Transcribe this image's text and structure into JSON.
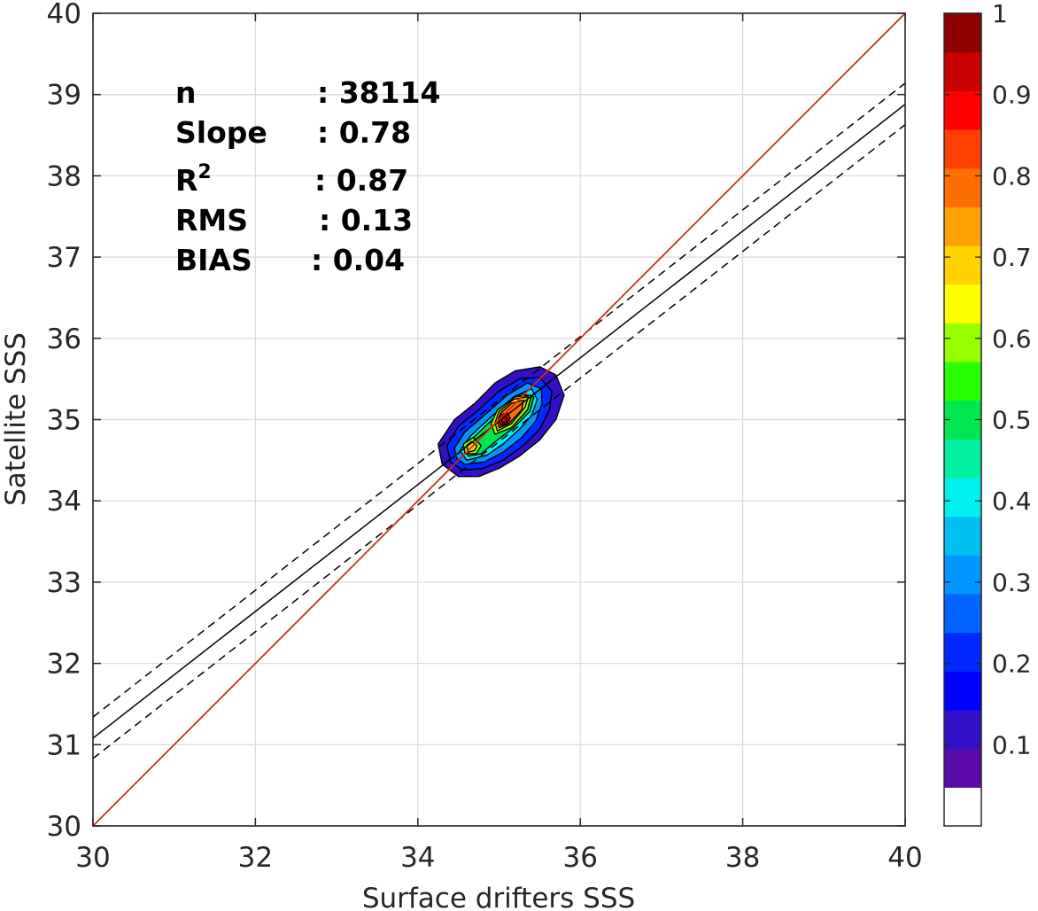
{
  "chart_data": {
    "type": "heatmap",
    "subtype": "density-contour-scatter",
    "title": "",
    "xlabel": "Surface drifters SSS",
    "ylabel": "Satellite SSS",
    "xlim": [
      30,
      40
    ],
    "ylim": [
      30,
      40
    ],
    "xticks": [
      "30",
      "32",
      "34",
      "36",
      "38",
      "40"
    ],
    "yticks": [
      "30",
      "31",
      "32",
      "33",
      "34",
      "35",
      "36",
      "37",
      "38",
      "39",
      "40"
    ],
    "grid": true,
    "stats": [
      {
        "label": "n",
        "sep": ": ",
        "value": "38114"
      },
      {
        "label": "Slope",
        "sep": ": ",
        "value": "0.78"
      },
      {
        "label": "R",
        "sup": "2",
        "sep": ": ",
        "value": "0.87"
      },
      {
        "label": "RMS",
        "sep": ": ",
        "value": "0.13"
      },
      {
        "label": "BIAS",
        "sep": ": ",
        "value": "0.04"
      }
    ],
    "lines": {
      "identity": {
        "slope": 1,
        "intercept": 0,
        "color": "#e0201a"
      },
      "fit": {
        "slope": 0.78,
        "intercept": 7.68,
        "color": "#000000"
      },
      "fit_upper": {
        "slope": 0.78,
        "intercept": 7.94,
        "color": "#000000",
        "dash": true
      },
      "fit_lower": {
        "slope": 0.78,
        "intercept": 7.43,
        "color": "#000000",
        "dash": true
      }
    },
    "density_levels": [
      {
        "level": 0.1,
        "points": [
          [
            34.5,
            34.3
          ],
          [
            34.75,
            34.3
          ],
          [
            35.0,
            34.4
          ],
          [
            35.25,
            34.55
          ],
          [
            35.5,
            34.75
          ],
          [
            35.7,
            35.0
          ],
          [
            35.8,
            35.3
          ],
          [
            35.7,
            35.55
          ],
          [
            35.5,
            35.65
          ],
          [
            35.2,
            35.6
          ],
          [
            34.95,
            35.45
          ],
          [
            34.7,
            35.2
          ],
          [
            34.45,
            35.0
          ],
          [
            34.25,
            34.7
          ],
          [
            34.3,
            34.45
          ]
        ]
      },
      {
        "level": 0.2,
        "points": [
          [
            34.55,
            34.38
          ],
          [
            34.8,
            34.4
          ],
          [
            35.05,
            34.5
          ],
          [
            35.3,
            34.68
          ],
          [
            35.5,
            34.88
          ],
          [
            35.62,
            35.12
          ],
          [
            35.65,
            35.35
          ],
          [
            35.5,
            35.52
          ],
          [
            35.25,
            35.5
          ],
          [
            35.0,
            35.35
          ],
          [
            34.75,
            35.12
          ],
          [
            34.5,
            34.92
          ],
          [
            34.36,
            34.68
          ],
          [
            34.4,
            34.48
          ]
        ]
      },
      {
        "level": 0.3,
        "points": [
          [
            34.58,
            34.45
          ],
          [
            34.82,
            34.48
          ],
          [
            35.05,
            34.6
          ],
          [
            35.28,
            34.78
          ],
          [
            35.45,
            34.98
          ],
          [
            35.53,
            35.2
          ],
          [
            35.52,
            35.38
          ],
          [
            35.35,
            35.45
          ],
          [
            35.1,
            35.3
          ],
          [
            34.85,
            35.08
          ],
          [
            34.58,
            34.85
          ],
          [
            34.45,
            34.65
          ],
          [
            34.48,
            34.52
          ]
        ]
      },
      {
        "level": 0.4,
        "points": [
          [
            34.6,
            34.5
          ],
          [
            34.85,
            34.56
          ],
          [
            35.05,
            34.7
          ],
          [
            35.25,
            34.88
          ],
          [
            35.4,
            35.05
          ],
          [
            35.47,
            35.25
          ],
          [
            35.4,
            35.38
          ],
          [
            35.18,
            35.28
          ],
          [
            34.92,
            35.05
          ],
          [
            34.65,
            34.8
          ],
          [
            34.52,
            34.62
          ]
        ]
      },
      {
        "level": 0.5,
        "points": [
          [
            34.62,
            34.55
          ],
          [
            34.78,
            34.58
          ],
          [
            34.98,
            34.75
          ],
          [
            35.18,
            34.9
          ],
          [
            35.38,
            35.1
          ],
          [
            35.43,
            35.28
          ],
          [
            35.28,
            35.32
          ],
          [
            35.02,
            35.1
          ],
          [
            34.76,
            34.85
          ],
          [
            34.58,
            34.68
          ]
        ]
      },
      {
        "level": 0.6,
        "points": [
          [
            34.95,
            34.82
          ],
          [
            35.15,
            34.9
          ],
          [
            35.35,
            35.12
          ],
          [
            35.4,
            35.3
          ],
          [
            35.2,
            35.28
          ],
          [
            34.98,
            35.12
          ],
          [
            34.9,
            34.95
          ]
        ]
      },
      {
        "level": 0.6,
        "points": [
          [
            34.58,
            34.58
          ],
          [
            34.72,
            34.58
          ],
          [
            34.78,
            34.68
          ],
          [
            34.68,
            34.78
          ],
          [
            34.56,
            34.7
          ]
        ]
      },
      {
        "level": 0.7,
        "points": [
          [
            34.98,
            34.86
          ],
          [
            35.15,
            34.95
          ],
          [
            35.32,
            35.15
          ],
          [
            35.36,
            35.28
          ],
          [
            35.18,
            35.25
          ],
          [
            35.0,
            35.1
          ],
          [
            34.95,
            34.96
          ]
        ]
      },
      {
        "level": 0.7,
        "points": [
          [
            34.62,
            34.6
          ],
          [
            34.7,
            34.62
          ],
          [
            34.73,
            34.68
          ],
          [
            34.66,
            34.73
          ],
          [
            34.6,
            34.68
          ]
        ]
      },
      {
        "level": 0.8,
        "points": [
          [
            35.0,
            34.9
          ],
          [
            35.12,
            34.95
          ],
          [
            35.28,
            35.12
          ],
          [
            35.3,
            35.24
          ],
          [
            35.15,
            35.2
          ],
          [
            35.02,
            35.08
          ],
          [
            34.98,
            34.98
          ]
        ]
      },
      {
        "level": 0.9,
        "points": [
          [
            35.02,
            34.93
          ],
          [
            35.1,
            34.95
          ],
          [
            35.14,
            35.02
          ],
          [
            35.1,
            35.08
          ],
          [
            35.02,
            35.06
          ],
          [
            34.99,
            35.0
          ]
        ]
      },
      {
        "level": 0.95,
        "points": [
          [
            35.04,
            34.96
          ],
          [
            35.09,
            34.97
          ],
          [
            35.1,
            35.02
          ],
          [
            35.06,
            35.05
          ],
          [
            35.02,
            35.02
          ]
        ]
      }
    ],
    "colorbar": {
      "min": 0,
      "max": 1,
      "ticks": [
        "0.1",
        "0.2",
        "0.3",
        "0.4",
        "0.5",
        "0.6",
        "0.7",
        "0.8",
        "0.9",
        "1"
      ],
      "tick_values": [
        0.1,
        0.2,
        0.3,
        0.4,
        0.5,
        0.6,
        0.7,
        0.8,
        0.9,
        1.0
      ],
      "colors": [
        "#ffffff",
        "#5a0aa8",
        "#3210c8",
        "#0000ff",
        "#0028ff",
        "#0064ff",
        "#0096ff",
        "#00bef0",
        "#00f0f0",
        "#00f0a0",
        "#00e650",
        "#28ff00",
        "#96ff00",
        "#ffff00",
        "#ffd200",
        "#ffa000",
        "#ff6e00",
        "#ff4000",
        "#ff0000",
        "#c80000",
        "#8c0000"
      ]
    }
  }
}
